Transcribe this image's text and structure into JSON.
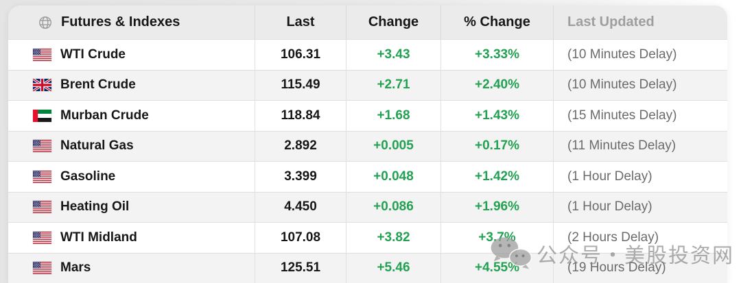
{
  "colors": {
    "positive_green": "#22a152",
    "header_text": "#161616",
    "header_muted_text": "#9e9e9e",
    "delay_text": "#6b6b6b",
    "header_background": "#ebebeb",
    "alt_row_background": "#f3f3f3"
  },
  "table": {
    "header_icon": "globe-icon",
    "columns": [
      {
        "key": "name",
        "label": "Futures & Indexes"
      },
      {
        "key": "last",
        "label": "Last"
      },
      {
        "key": "change",
        "label": "Change"
      },
      {
        "key": "pct",
        "label": "% Change"
      },
      {
        "key": "updated",
        "label": "Last Updated"
      }
    ],
    "rows": [
      {
        "flag": "us",
        "flag_icon": "flag-us-icon",
        "name": "WTI Crude",
        "last": "106.31",
        "change": "+3.43",
        "pct": "+3.33%",
        "updated": "(10 Minutes Delay)"
      },
      {
        "flag": "uk",
        "flag_icon": "flag-uk-icon",
        "name": "Brent Crude",
        "last": "115.49",
        "change": "+2.71",
        "pct": "+2.40%",
        "updated": "(10 Minutes Delay)"
      },
      {
        "flag": "ae",
        "flag_icon": "flag-ae-icon",
        "name": "Murban Crude",
        "last": "118.84",
        "change": "+1.68",
        "pct": "+1.43%",
        "updated": "(15 Minutes Delay)"
      },
      {
        "flag": "us",
        "flag_icon": "flag-us-icon",
        "name": "Natural Gas",
        "last": "2.892",
        "change": "+0.005",
        "pct": "+0.17%",
        "updated": "(11 Minutes Delay)"
      },
      {
        "flag": "us",
        "flag_icon": "flag-us-icon",
        "name": "Gasoline",
        "last": "3.399",
        "change": "+0.048",
        "pct": "+1.42%",
        "updated": "(1 Hour Delay)"
      },
      {
        "flag": "us",
        "flag_icon": "flag-us-icon",
        "name": "Heating Oil",
        "last": "4.450",
        "change": "+0.086",
        "pct": "+1.96%",
        "updated": "(1 Hour Delay)"
      },
      {
        "flag": "us",
        "flag_icon": "flag-us-icon",
        "name": "WTI Midland",
        "last": "107.08",
        "change": "+3.82",
        "pct": "+3.7%",
        "updated": "(2 Hours Delay)"
      },
      {
        "flag": "us",
        "flag_icon": "flag-us-icon",
        "name": "Mars",
        "last": "125.51",
        "change": "+5.46",
        "pct": "+4.55%",
        "updated": "(19 Hours Delay)"
      }
    ]
  },
  "watermark": {
    "icon": "wechat-icon",
    "text": "公众号・美股投资网"
  }
}
